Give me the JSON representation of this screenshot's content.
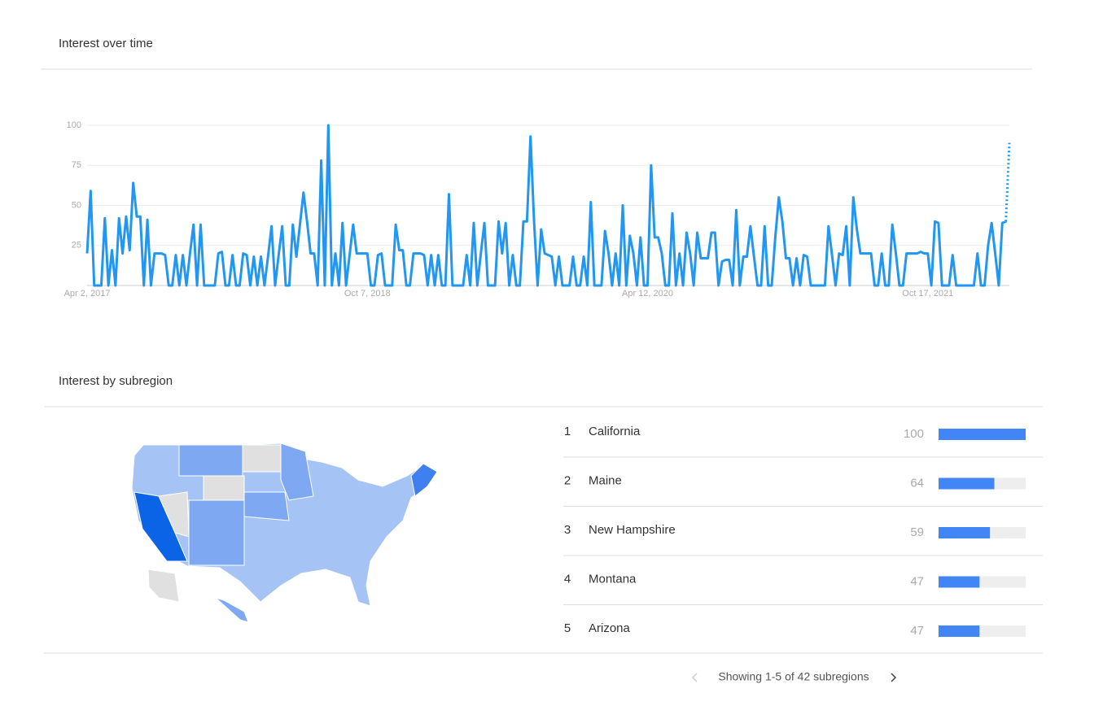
{
  "chart_data": [
    {
      "type": "line",
      "title": "Interest over time",
      "color": "#2196f3",
      "grid": true,
      "xlim": [
        0,
        260
      ],
      "xticks": [
        {
          "value": 0,
          "label": "Apr 2, 2017"
        },
        {
          "value": 79,
          "label": "Oct 7, 2018"
        },
        {
          "value": 158,
          "label": "Apr 12, 2020"
        },
        {
          "value": 237,
          "label": "Oct 17, 2021"
        }
      ],
      "ylim": [
        0,
        100
      ],
      "yticks": [
        25,
        50,
        75,
        100
      ],
      "values": [
        20,
        59,
        0,
        0,
        0,
        42,
        0,
        22,
        0,
        42,
        20,
        43,
        22,
        64,
        43,
        43,
        0,
        41,
        0,
        20,
        20,
        20,
        19,
        0,
        0,
        19,
        0,
        19,
        0,
        20,
        38,
        0,
        38,
        0,
        0,
        0,
        0,
        20,
        21,
        0,
        0,
        19,
        0,
        0,
        20,
        19,
        0,
        18,
        0,
        18,
        0,
        18,
        37,
        0,
        19,
        37,
        0,
        0,
        38,
        18,
        38,
        58,
        40,
        20,
        20,
        0,
        78,
        0,
        100,
        0,
        20,
        0,
        39,
        0,
        19,
        38,
        20,
        20,
        20,
        20,
        0,
        0,
        19,
        20,
        0,
        0,
        0,
        38,
        22,
        22,
        0,
        0,
        20,
        20,
        20,
        19,
        0,
        19,
        0,
        19,
        0,
        0,
        57,
        0,
        0,
        0,
        0,
        19,
        0,
        39,
        0,
        20,
        39,
        0,
        0,
        0,
        40,
        20,
        39,
        0,
        19,
        0,
        0,
        40,
        40,
        93,
        40,
        0,
        35,
        20,
        19,
        18,
        0,
        18,
        0,
        0,
        0,
        18,
        0,
        0,
        18,
        0,
        52,
        0,
        0,
        0,
        34,
        20,
        0,
        20,
        0,
        50,
        0,
        31,
        20,
        0,
        30,
        0,
        0,
        75,
        30,
        30,
        20,
        0,
        0,
        45,
        0,
        20,
        0,
        33,
        20,
        0,
        33,
        17,
        17,
        17,
        33,
        33,
        0,
        15,
        16,
        16,
        0,
        47,
        0,
        18,
        18,
        37,
        18,
        0,
        0,
        37,
        0,
        0,
        30,
        55,
        40,
        17,
        17,
        0,
        17,
        0,
        19,
        18,
        0,
        0,
        0,
        0,
        0,
        37,
        19,
        0,
        20,
        19,
        37,
        0,
        55,
        35,
        20,
        20,
        20,
        20,
        0,
        0,
        20,
        0,
        0,
        38,
        20,
        0,
        0,
        20,
        20,
        20,
        20,
        21,
        20,
        20,
        0,
        40,
        39,
        0,
        0,
        0,
        19,
        0,
        0,
        0,
        0,
        0,
        0,
        20,
        0,
        0,
        25,
        39,
        20,
        0,
        39,
        40,
        89
      ]
    },
    {
      "type": "ranking",
      "title": "Interest by subregion",
      "color": "#4285f4",
      "xlim": [
        0,
        100
      ],
      "ranks": [
        1,
        2,
        3,
        4,
        5
      ],
      "categories": [
        "California",
        "Maine",
        "New Hampshire",
        "Montana",
        "Arizona"
      ],
      "values": [
        100,
        64,
        59,
        47,
        47
      ]
    }
  ],
  "footer": "Showing 1-5 of 42 subregions"
}
